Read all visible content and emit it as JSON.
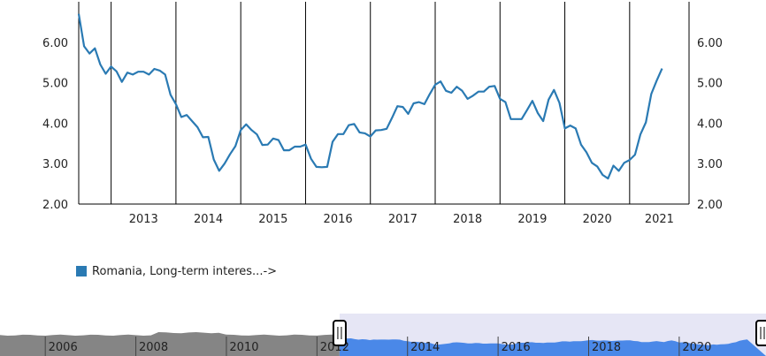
{
  "chart_data": {
    "type": "line",
    "series": [
      {
        "name": "Romania, Long-term interes...->",
        "color": "#2a7ab3",
        "x_start": "2012-07",
        "values": [
          6.7,
          5.9,
          5.72,
          5.85,
          5.45,
          5.22,
          5.4,
          5.28,
          5.02,
          5.25,
          5.2,
          5.27,
          5.27,
          5.2,
          5.34,
          5.3,
          5.2,
          4.7,
          4.47,
          4.15,
          4.2,
          4.05,
          3.9,
          3.65,
          3.66,
          3.1,
          2.82,
          3.0,
          3.23,
          3.43,
          3.83,
          3.97,
          3.83,
          3.72,
          3.46,
          3.47,
          3.62,
          3.58,
          3.33,
          3.33,
          3.42,
          3.42,
          3.47,
          3.12,
          2.92,
          2.91,
          2.92,
          3.54,
          3.73,
          3.73,
          3.95,
          3.98,
          3.77,
          3.75,
          3.67,
          3.82,
          3.83,
          3.86,
          4.13,
          4.42,
          4.4,
          4.23,
          4.49,
          4.52,
          4.47,
          4.72,
          4.95,
          5.03,
          4.8,
          4.75,
          4.9,
          4.8,
          4.6,
          4.68,
          4.78,
          4.78,
          4.9,
          4.92,
          4.6,
          4.52,
          4.1,
          4.1,
          4.1,
          4.32,
          4.55,
          4.25,
          4.05,
          4.58,
          4.82,
          4.5,
          3.87,
          3.94,
          3.87,
          3.47,
          3.28,
          3.02,
          2.93,
          2.72,
          2.63,
          2.95,
          2.82,
          3.02,
          3.09,
          3.22,
          3.72,
          4.02,
          4.72,
          5.05,
          5.35
        ]
      }
    ],
    "ylim": [
      2,
      7
    ],
    "yticks": [
      "2.00",
      "3.00",
      "4.00",
      "5.00",
      "6.00"
    ],
    "xlim": [
      "2012-07",
      "2021-12"
    ],
    "year_labels": [
      "2013",
      "2014",
      "2015",
      "2016",
      "2017",
      "2018",
      "2019",
      "2020",
      "2021"
    ],
    "grid": "vertical lines at year boundaries",
    "legend_position": "bottom-left"
  },
  "navigator": {
    "labels": [
      "2006",
      "2008",
      "2010",
      "2012",
      "2014",
      "2016",
      "2018",
      "2020"
    ],
    "range_start": "2005-01",
    "selected_from": "2012-07",
    "selected_to": "2021-12",
    "colors": {
      "selected_fill": "#4a88e8",
      "unselected_fill": "#858585",
      "mask": "#e6e6f5"
    }
  }
}
